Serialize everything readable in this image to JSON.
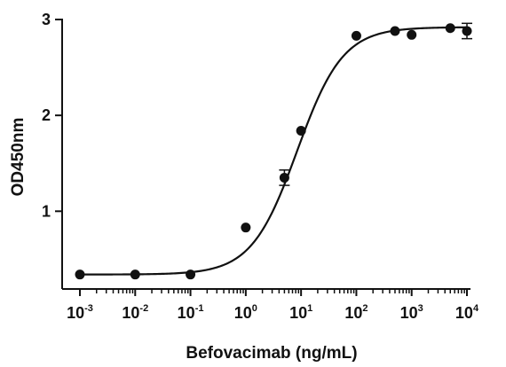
{
  "chart_data": {
    "type": "scatter",
    "xlabel": "Befovacimab (ng/mL)",
    "ylabel": "OD450nm",
    "x_scale": "log10",
    "xlim": [
      0.001,
      10000
    ],
    "ylim": [
      0.3,
      3.0
    ],
    "x_ticks": [
      {
        "base": "10",
        "exp": "-3",
        "value": 0.001
      },
      {
        "base": "10",
        "exp": "-2",
        "value": 0.01
      },
      {
        "base": "10",
        "exp": "-1",
        "value": 0.1
      },
      {
        "base": "10",
        "exp": "0",
        "value": 1
      },
      {
        "base": "10",
        "exp": "1",
        "value": 10
      },
      {
        "base": "10",
        "exp": "2",
        "value": 100
      },
      {
        "base": "10",
        "exp": "3",
        "value": 1000
      },
      {
        "base": "10",
        "exp": "4",
        "value": 10000
      }
    ],
    "y_ticks": [
      {
        "label": "1",
        "value": 1
      },
      {
        "label": "2",
        "value": 2
      },
      {
        "label": "3",
        "value": 3
      }
    ],
    "grid": false,
    "marker_color": "#111111",
    "line_color": "#111111",
    "points": [
      {
        "x": 0.001,
        "y": 0.34,
        "err": 0
      },
      {
        "x": 0.01,
        "y": 0.34,
        "err": 0
      },
      {
        "x": 0.1,
        "y": 0.34,
        "err": 0
      },
      {
        "x": 1,
        "y": 0.83,
        "err": 0
      },
      {
        "x": 5,
        "y": 1.35,
        "err": 0.08
      },
      {
        "x": 10,
        "y": 1.84,
        "err": 0
      },
      {
        "x": 100,
        "y": 2.83,
        "err": 0
      },
      {
        "x": 500,
        "y": 2.88,
        "err": 0
      },
      {
        "x": 1000,
        "y": 2.84,
        "err": 0
      },
      {
        "x": 5000,
        "y": 2.91,
        "err": 0
      },
      {
        "x": 10000,
        "y": 2.88,
        "err": 0.08
      }
    ],
    "fit": {
      "model": "4PL",
      "bottom": 0.34,
      "top": 2.92,
      "ec50": 8.5,
      "hill": 1.05
    }
  }
}
